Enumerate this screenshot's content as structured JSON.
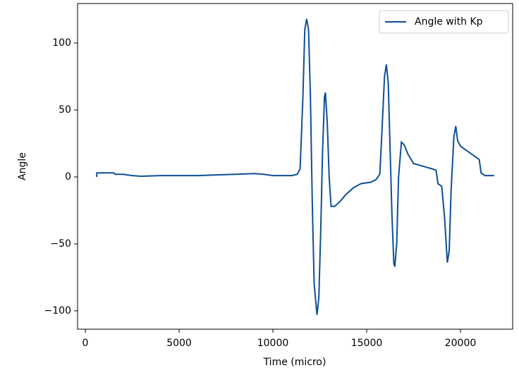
{
  "chart_data": {
    "type": "line",
    "xlabel": "Time (micro)",
    "ylabel": "Angle",
    "x": [
      600,
      620,
      1500,
      1600,
      2000,
      2500,
      3000,
      4000,
      5000,
      6000,
      7000,
      8000,
      9000,
      9500,
      10000,
      11000,
      11300,
      11450,
      11600,
      11700,
      11800,
      11900,
      12000,
      12100,
      12200,
      12350,
      12450,
      12550,
      12650,
      12750,
      12800,
      12900,
      13000,
      13100,
      13300,
      13600,
      13900,
      14300,
      14700,
      15200,
      15500,
      15700,
      15800,
      15950,
      16050,
      16150,
      16250,
      16350,
      16450,
      16500,
      16600,
      16700,
      16850,
      17000,
      17200,
      17500,
      18000,
      18500,
      18700,
      18800,
      19000,
      19150,
      19300,
      19400,
      19500,
      19650,
      19750,
      19850,
      20000,
      20300,
      20700,
      21000,
      21100,
      21300,
      21800
    ],
    "series": [
      {
        "name": "Angle with Kp",
        "color": "#0d4f98",
        "values": [
          0,
          3,
          3,
          2,
          2,
          1,
          0.5,
          1,
          1,
          1,
          1.5,
          2,
          2.5,
          2,
          1,
          1,
          2,
          6,
          60,
          110,
          118,
          110,
          60,
          -20,
          -80,
          -103,
          -90,
          -40,
          20,
          60,
          63,
          40,
          0,
          -22,
          -22,
          -18,
          -13,
          -8,
          -5,
          -4,
          -2,
          2,
          30,
          75,
          84,
          70,
          20,
          -30,
          -65,
          -67,
          -50,
          0,
          26,
          24,
          17,
          10,
          8,
          6,
          5,
          -5,
          -7,
          -30,
          -64,
          -55,
          -10,
          30,
          38,
          27,
          23,
          20,
          16,
          13,
          3,
          1,
          1
        ]
      }
    ],
    "xlim": [
      -414,
      22782
    ],
    "ylim": [
      -113.7,
      129.5
    ],
    "xticks": [
      0,
      5000,
      10000,
      15000,
      20000
    ],
    "yticks": [
      {
        "value": -100,
        "label": "−100"
      },
      {
        "value": -50,
        "label": "−50"
      },
      0,
      50,
      100
    ],
    "legend": "upper right"
  }
}
